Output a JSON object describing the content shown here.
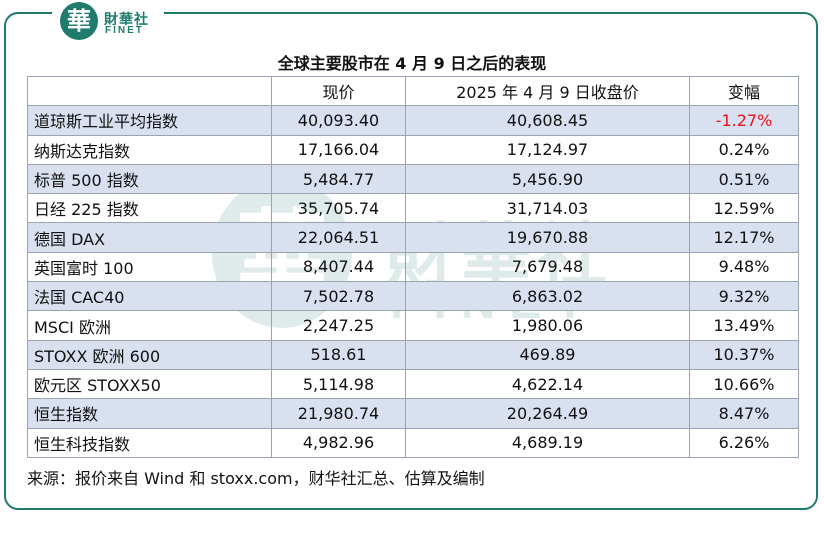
{
  "logo": {
    "seal_char": "華",
    "cn": "財華社",
    "en": "FINET"
  },
  "watermark": {
    "seal_char": "華",
    "cn": "財華社",
    "en": "FINET"
  },
  "title": "全球主要股市在 4 月 9 日之后的表现",
  "table": {
    "headers": [
      "",
      "现价",
      "2025 年 4 月 9 日收盘价",
      "变幅"
    ],
    "rows": [
      {
        "name": "道琼斯工业平均指数",
        "current": "40,093.40",
        "close": "40,608.45",
        "change": "-1.27%",
        "negative": true
      },
      {
        "name": "纳斯达克指数",
        "current": "17,166.04",
        "close": "17,124.97",
        "change": "0.24%"
      },
      {
        "name": "标普 500 指数",
        "current": "5,484.77",
        "close": "5,456.90",
        "change": "0.51%"
      },
      {
        "name": "日经 225 指数",
        "current": "35,705.74",
        "close": "31,714.03",
        "change": "12.59%"
      },
      {
        "name": "德国 DAX",
        "current": "22,064.51",
        "close": "19,670.88",
        "change": "12.17%"
      },
      {
        "name": "英国富时 100",
        "current": "8,407.44",
        "close": "7,679.48",
        "change": "9.48%"
      },
      {
        "name": "法国 CAC40",
        "current": "7,502.78",
        "close": "6,863.02",
        "change": "9.32%"
      },
      {
        "name": "MSCI 欧洲",
        "current": "2,247.25",
        "close": "1,980.06",
        "change": "13.49%"
      },
      {
        "name": "STOXX 欧洲 600",
        "current": "518.61",
        "close": "469.89",
        "change": "10.37%"
      },
      {
        "name": "欧元区 STOXX50",
        "current": "5,114.98",
        "close": "4,622.14",
        "change": "10.66%"
      },
      {
        "name": "恒生指数",
        "current": "21,980.74",
        "close": "20,264.49",
        "change": "8.47%"
      },
      {
        "name": "恒生科技指数",
        "current": "4,982.96",
        "close": "4,689.19",
        "change": "6.26%"
      }
    ]
  },
  "source": "来源：报价来自 Wind 和 stoxx.com，财华社汇总、估算及编制",
  "colors": {
    "frame": "#1e7b6e",
    "row_shade": "#d9e0f0",
    "negative": "#e8131c"
  }
}
